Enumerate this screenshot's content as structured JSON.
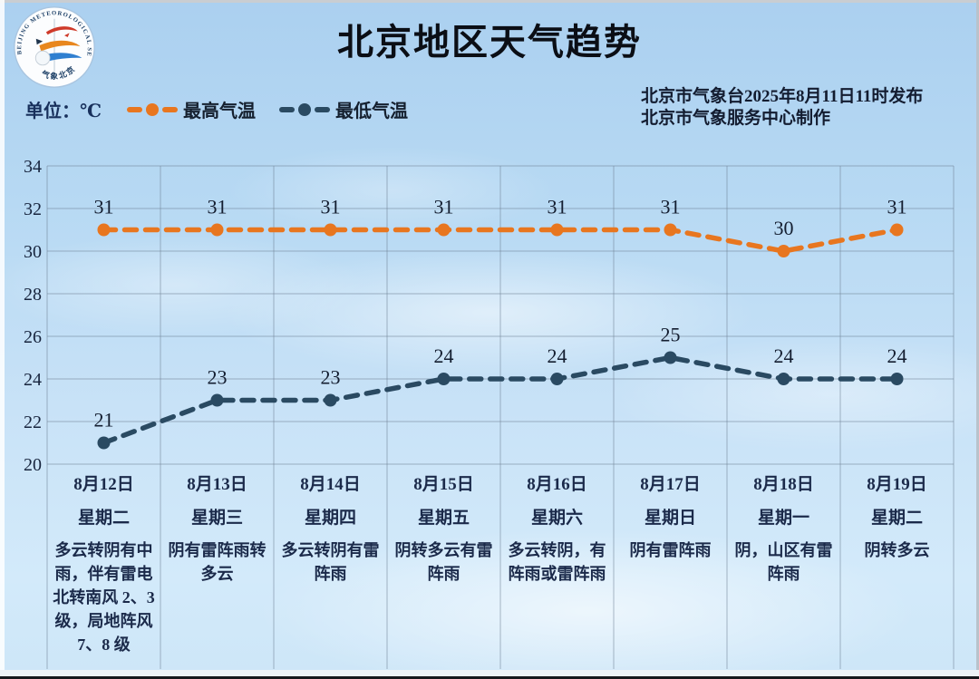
{
  "header": {
    "title": "北京地区天气趋势",
    "issued_line1": "北京市气象台2025年8月11日11时发布",
    "issued_line2": "北京市气象服务中心制作",
    "logo": {
      "ring_text": "BEIJING METEOROLOGICAL SERVICE",
      "bottom_text": "气象北京"
    }
  },
  "legend": {
    "unit_label": "单位：℃",
    "items": [
      {
        "label": "最高气温",
        "color": "#E8761F"
      },
      {
        "label": "最低气温",
        "color": "#2A4A62"
      }
    ]
  },
  "chart_data": {
    "type": "line",
    "title": "北京地区天气趋势",
    "unit": "℃",
    "ylim": [
      20,
      34
    ],
    "yticks": [
      20,
      22,
      24,
      26,
      28,
      30,
      32,
      34
    ],
    "grid": true,
    "legend_position": "top-left",
    "line_style": "dashed",
    "categories": [
      {
        "date": "8月12日",
        "weekday": "星期二",
        "weather": "多云转阴有中雨，伴有雷电北转南风 2、3 级，局地阵风 7、8 级"
      },
      {
        "date": "8月13日",
        "weekday": "星期三",
        "weather": "阴有雷阵雨转多云"
      },
      {
        "date": "8月14日",
        "weekday": "星期四",
        "weather": "多云转阴有雷阵雨"
      },
      {
        "date": "8月15日",
        "weekday": "星期五",
        "weather": "阴转多云有雷阵雨"
      },
      {
        "date": "8月16日",
        "weekday": "星期六",
        "weather": "多云转阴，有阵雨或雷阵雨"
      },
      {
        "date": "8月17日",
        "weekday": "星期日",
        "weather": "阴有雷阵雨"
      },
      {
        "date": "8月18日",
        "weekday": "星期一",
        "weather": "阴，山区有雷阵雨"
      },
      {
        "date": "8月19日",
        "weekday": "星期二",
        "weather": "阴转多云"
      }
    ],
    "series": [
      {
        "name": "最高气温",
        "color": "#E8761F",
        "values": [
          31,
          31,
          31,
          31,
          31,
          31,
          30,
          31
        ]
      },
      {
        "name": "最低气温",
        "color": "#2A4A62",
        "values": [
          21,
          23,
          23,
          24,
          24,
          25,
          24,
          24
        ]
      }
    ],
    "colors": {
      "grid": "rgba(110,128,148,0.55)",
      "tick_text": "#18253e",
      "value_text": "#141e30"
    }
  }
}
